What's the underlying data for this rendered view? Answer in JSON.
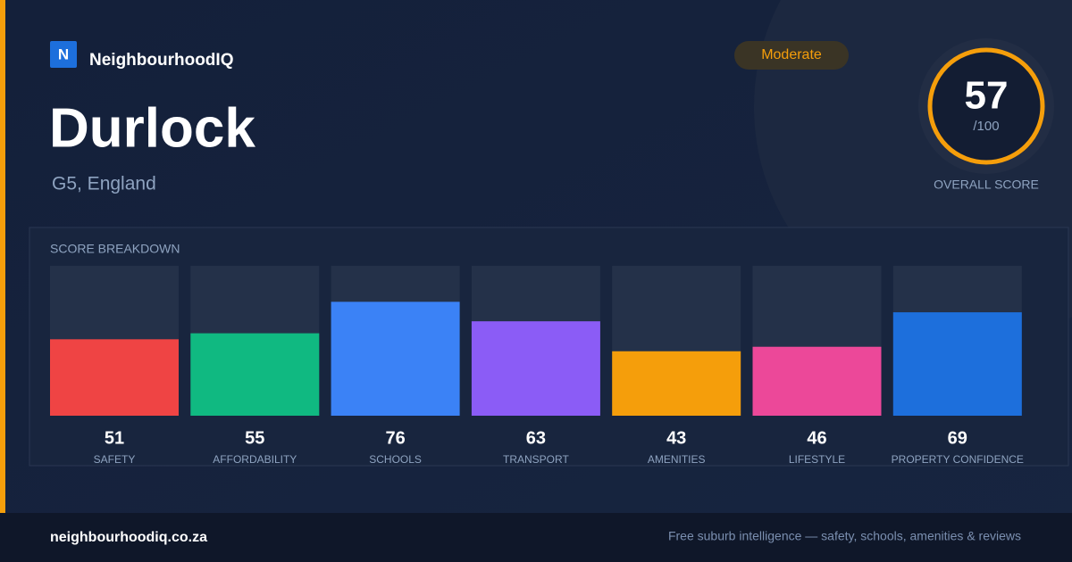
{
  "header": {
    "logo_letter": "N",
    "brand": "NeighbourhoodIQ",
    "badge": "Moderate"
  },
  "place": {
    "name": "Durlock",
    "location": "G5, England"
  },
  "overall": {
    "score": 57,
    "out_of": {
      "value": 100,
      "label": "/100"
    },
    "label": "OVERALL SCORE"
  },
  "breakdown": {
    "title": "SCORE BREAKDOWN",
    "items": [
      {
        "name": "SAFETY",
        "value": 51,
        "color": "#ef4444"
      },
      {
        "name": "AFFORDABILITY",
        "value": 55,
        "color": "#10b981"
      },
      {
        "name": "SCHOOLS",
        "value": 76,
        "color": "#3b82f6"
      },
      {
        "name": "TRANSPORT",
        "value": 63,
        "color": "#8b5cf6"
      },
      {
        "name": "AMENITIES",
        "value": 43,
        "color": "#f59e0b"
      },
      {
        "name": "LIFESTYLE",
        "value": 46,
        "color": "#ec4899"
      },
      {
        "name": "PROPERTY CONFIDENCE",
        "value": 69,
        "color": "#1d6fdc"
      }
    ]
  },
  "footer": {
    "url": "neighbourhoodiq.co.za",
    "tagline": "Free suburb intelligence — safety, schools, amenities & reviews"
  }
}
